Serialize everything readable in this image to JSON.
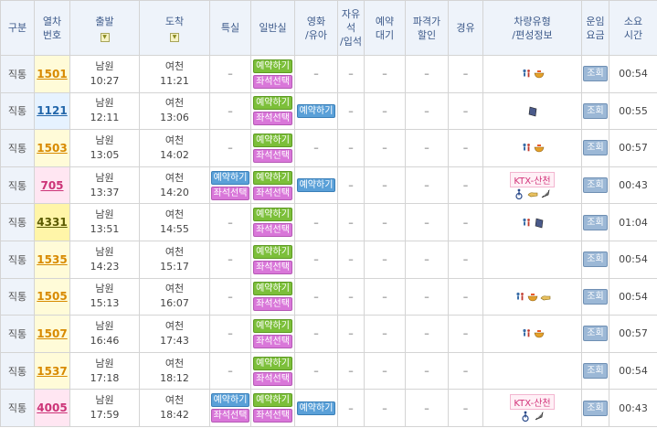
{
  "header": {
    "kind": "구분",
    "train_no_1": "열차",
    "train_no_2": "번호",
    "dep": "출발",
    "arr": "도착",
    "special": "특실",
    "general": "일반실",
    "infant_1": "영화",
    "infant_2": "/유아",
    "free_1": "자유",
    "free_2": "석",
    "free_3": "/입석",
    "wait_1": "예약",
    "wait_2": "대기",
    "disc_1": "파격가",
    "disc_2": "할인",
    "via": "경유",
    "car_1": "차량유형",
    "car_2": "/편성정보",
    "fare_1": "운임",
    "fare_2": "요금",
    "time_1": "소요",
    "time_2": "시간",
    "sort_glyph": "▼"
  },
  "labels": {
    "reserve": "예약하기",
    "seat": "좌석선택",
    "view": "조회",
    "dash": "–"
  },
  "rows": [
    {
      "kind": "직통",
      "no": "1501",
      "color": "orange",
      "dep_st": "남원",
      "dep_t": "10:27",
      "arr_st": "여천",
      "arr_t": "11:21",
      "special": false,
      "infant": false,
      "ktx": false,
      "icons": [
        "wheelchair-person-icon",
        "bowl-icon"
      ],
      "dur": "00:54"
    },
    {
      "kind": "직통",
      "no": "1121",
      "color": "blue",
      "dep_st": "남원",
      "dep_t": "12:11",
      "arr_st": "여천",
      "arr_t": "13:06",
      "special": false,
      "infant": true,
      "ktx": false,
      "icons": [
        "book-icon"
      ],
      "dur": "00:55"
    },
    {
      "kind": "직통",
      "no": "1503",
      "color": "orange",
      "dep_st": "남원",
      "dep_t": "13:05",
      "arr_st": "여천",
      "arr_t": "14:02",
      "special": false,
      "infant": false,
      "ktx": false,
      "icons": [
        "wheelchair-person-icon",
        "bowl-icon"
      ],
      "dur": "00:57"
    },
    {
      "kind": "직통",
      "no": "705",
      "color": "pink",
      "dep_st": "남원",
      "dep_t": "13:37",
      "arr_st": "여천",
      "arr_t": "14:20",
      "special": true,
      "infant": true,
      "ktx": true,
      "ktx_label": "KTX-산천",
      "icons": [
        "wheelchair-icon",
        "hand-icon",
        "feather-icon"
      ],
      "dur": "00:43"
    },
    {
      "kind": "직통",
      "no": "4331",
      "color": "yellow",
      "dep_st": "남원",
      "dep_t": "13:51",
      "arr_st": "여천",
      "arr_t": "14:55",
      "special": false,
      "infant": false,
      "ktx": false,
      "icons": [
        "wheelchair-person-icon",
        "book-icon"
      ],
      "dur": "01:04"
    },
    {
      "kind": "직통",
      "no": "1535",
      "color": "orange",
      "dep_st": "남원",
      "dep_t": "14:23",
      "arr_st": "여천",
      "arr_t": "15:17",
      "special": false,
      "infant": false,
      "ktx": false,
      "icons": [],
      "dur": "00:54"
    },
    {
      "kind": "직통",
      "no": "1505",
      "color": "orange",
      "dep_st": "남원",
      "dep_t": "15:13",
      "arr_st": "여천",
      "arr_t": "16:07",
      "special": false,
      "infant": false,
      "ktx": false,
      "icons": [
        "wheelchair-person-icon",
        "bowl-icon",
        "hand-icon"
      ],
      "dur": "00:54"
    },
    {
      "kind": "직통",
      "no": "1507",
      "color": "orange",
      "dep_st": "남원",
      "dep_t": "16:46",
      "arr_st": "여천",
      "arr_t": "17:43",
      "special": false,
      "infant": false,
      "ktx": false,
      "icons": [
        "wheelchair-person-icon",
        "bowl-icon"
      ],
      "dur": "00:57"
    },
    {
      "kind": "직통",
      "no": "1537",
      "color": "orange",
      "dep_st": "남원",
      "dep_t": "17:18",
      "arr_st": "여천",
      "arr_t": "18:12",
      "special": false,
      "infant": false,
      "ktx": false,
      "icons": [],
      "dur": "00:54"
    },
    {
      "kind": "직통",
      "no": "4005",
      "color": "pink",
      "dep_st": "남원",
      "dep_t": "17:59",
      "arr_st": "여천",
      "arr_t": "18:42",
      "special": true,
      "infant": true,
      "ktx": true,
      "ktx_label": "KTX-산천",
      "icons": [
        "wheelchair-icon",
        "feather-icon"
      ],
      "dur": "00:43"
    }
  ]
}
